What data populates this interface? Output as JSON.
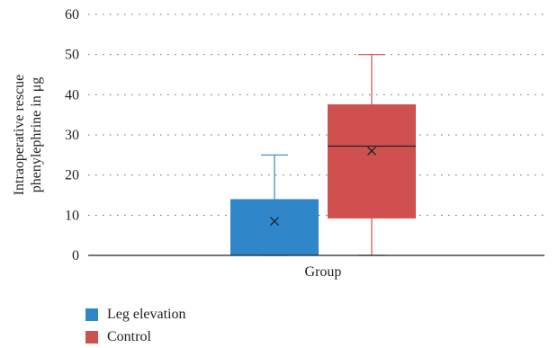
{
  "chart_data": {
    "type": "box",
    "xlabel": "Group",
    "ylabel_lines": [
      "Intraoperative rescue",
      "phenylephrine in μg"
    ],
    "ylim": [
      0,
      60
    ],
    "yticks": [
      0,
      10,
      20,
      30,
      40,
      50,
      60
    ],
    "grid": "horizontal dotted",
    "legend_position": "bottom-left",
    "series": [
      {
        "name": "Leg elevation",
        "color": "#2f86c8",
        "min": 0,
        "q1": 0,
        "median": 0,
        "q3": 14,
        "max": 25,
        "mean": 8.5
      },
      {
        "name": "Control",
        "color": "#d05050",
        "min": 0,
        "q1": 9.2,
        "median": 27.2,
        "q3": 37.6,
        "max": 50,
        "mean": 26
      }
    ]
  }
}
